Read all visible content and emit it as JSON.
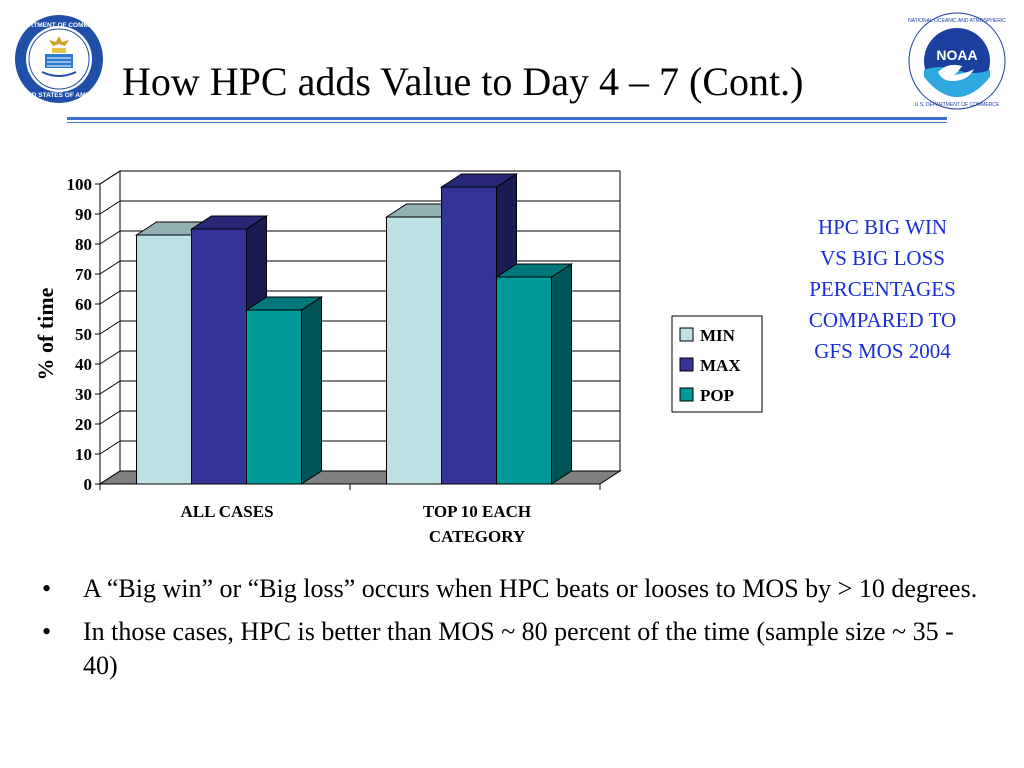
{
  "slide": {
    "title": "How HPC adds Value to Day 4 – 7 (Cont.)",
    "side_note": [
      "HPC BIG WIN",
      "VS BIG LOSS",
      "PERCENTAGES",
      "COMPARED TO",
      "GFS MOS 2004"
    ],
    "bullets": [
      "A “Big win” or “Big loss” occurs when HPC beats or looses to MOS by > 10 degrees.",
      "In those cases, HPC is better than MOS ~ 80 percent of the time (sample size ~ 35 - 40)"
    ],
    "bullet_symbol": "•",
    "logo_left": {
      "text": "DEPARTMENT OF COMMERCE · UNITED STATES OF AMERICA",
      "color": "#1f4fa8"
    },
    "logo_right": {
      "text": "NOAA",
      "ring_text": "NATIONAL OCEANIC AND ATMOSPHERIC ADMINISTRATION · U.S. DEPARTMENT OF COMMERCE",
      "color": "#1a3f9e"
    },
    "rule_color": "#3a6fd0",
    "note_color": "#1a2ed6"
  },
  "chart_data": {
    "type": "bar",
    "categories": [
      [
        "ALL CASES"
      ],
      [
        "TOP 10 EACH",
        "CATEGORY"
      ]
    ],
    "series": [
      {
        "name": "MIN",
        "values": [
          83,
          89
        ],
        "color": "#bde1e4"
      },
      {
        "name": "MAX",
        "values": [
          85,
          99
        ],
        "color": "#333399"
      },
      {
        "name": "POP",
        "values": [
          58,
          69
        ],
        "color": "#00999a"
      }
    ],
    "ylabel": "% of time",
    "ylim": [
      0,
      100
    ],
    "yticks": [
      0,
      10,
      20,
      30,
      40,
      50,
      60,
      70,
      80,
      90,
      100
    ],
    "grid": true,
    "three_d": true,
    "legend_position": "right"
  }
}
